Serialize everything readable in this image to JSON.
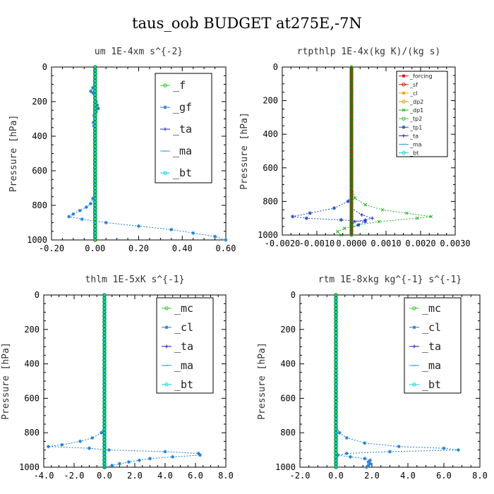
{
  "figure_title": "taus_oob  BUDGET at275E,-7N",
  "chart_data": [
    {
      "type": "line",
      "title": "um  1E-4xm s^{-2}",
      "ylabel": "Pressure [hPa]",
      "xlim": [
        -0.2,
        0.6
      ],
      "ylim": [
        1000,
        0
      ],
      "xticks": [
        "-0.20",
        "0.00",
        "0.20",
        "0.40",
        "0.60"
      ],
      "yticks": [
        "0",
        "200",
        "400",
        "600",
        "800",
        "1000"
      ],
      "legend_placement": "top-right",
      "series": [
        {
          "name": "_f",
          "color": "#2ecc2e",
          "marker": "o",
          "p": [
            0,
            100,
            200,
            300,
            400,
            500,
            600,
            700,
            800,
            900,
            1000
          ],
          "v": [
            0,
            0,
            0,
            0,
            0,
            0,
            0,
            0,
            0,
            0,
            0
          ]
        },
        {
          "name": "_gf",
          "color": "#1e7fd0",
          "marker": "*",
          "p": [
            0,
            120,
            140,
            150,
            170,
            200,
            220,
            240,
            260,
            280,
            300,
            320,
            340,
            360,
            400,
            600,
            700,
            760,
            790,
            810,
            830,
            850,
            865,
            880,
            900,
            920,
            940,
            960,
            980,
            1000
          ],
          "v": [
            0,
            -0.01,
            -0.02,
            -0.01,
            0,
            0.005,
            0.01,
            0.015,
            0.005,
            -0.005,
            0,
            -0.008,
            -0.005,
            0,
            0,
            0,
            0,
            -0.01,
            -0.02,
            -0.04,
            -0.07,
            -0.1,
            -0.12,
            -0.06,
            0.05,
            0.2,
            0.35,
            0.45,
            0.55,
            0.6
          ]
        },
        {
          "name": "_ta",
          "color": "#1a1acc",
          "marker": "+",
          "p": [],
          "v": []
        },
        {
          "name": "_ma",
          "color": "#2a9fe0",
          "marker": "-",
          "p": [],
          "v": []
        },
        {
          "name": "_bt",
          "color": "#13d6d6",
          "marker": "o",
          "p": [
            0,
            200,
            400,
            600,
            800,
            1000
          ],
          "v": [
            0,
            0,
            0,
            0,
            0,
            0
          ]
        }
      ]
    },
    {
      "type": "line",
      "title": "rtpthlp  1E-4x(kg K)/(kg s)",
      "ylabel": "Pressure [hPa]",
      "xlim": [
        -0.002,
        0.003
      ],
      "ylim": [
        1000,
        0
      ],
      "xticks": [
        "-0.0020",
        "-0.0010",
        "0.0000",
        "0.0010",
        "0.0020",
        "0.0030"
      ],
      "yticks": [
        "0",
        "200",
        "400",
        "600",
        "800",
        "1000"
      ],
      "legend_placement": "top-right",
      "series": [
        {
          "name": "_forcing",
          "color": "#d01010",
          "marker": "*",
          "p": [
            0,
            200,
            400,
            600,
            800,
            1000
          ],
          "v": [
            0,
            0,
            0,
            0,
            0,
            0
          ]
        },
        {
          "name": "_sf",
          "color": "#d01010",
          "marker": "o",
          "p": [],
          "v": []
        },
        {
          "name": "_cl",
          "color": "#e0a010",
          "marker": "*",
          "p": [],
          "v": []
        },
        {
          "name": "_dp2",
          "color": "#e0a010",
          "marker": "o",
          "p": [],
          "v": []
        },
        {
          "name": "_dp1",
          "color": "#20b020",
          "marker": "x",
          "p": [
            0,
            700,
            780,
            820,
            850,
            870,
            890,
            900,
            920,
            940,
            960,
            980,
            1000
          ],
          "v": [
            0,
            0,
            0.0001,
            0.0004,
            0.0009,
            0.0016,
            0.0023,
            0.0019,
            0.0008,
            0.0002,
            -0.0002,
            -0.0004,
            -0.0003
          ]
        },
        {
          "name": "_tp2",
          "color": "#40c040",
          "marker": "o",
          "p": [],
          "v": []
        },
        {
          "name": "_tp1",
          "color": "#2050c0",
          "marker": "*",
          "p": [
            0,
            760,
            800,
            840,
            870,
            890,
            900,
            910,
            920,
            940,
            960,
            1000
          ],
          "v": [
            0,
            0,
            -0.0001,
            -0.0005,
            -0.0012,
            -0.0017,
            -0.0013,
            -0.0003,
            0.0004,
            0.0002,
            0,
            0
          ]
        },
        {
          "name": "_ta",
          "color": "#1a1acc",
          "marker": "+",
          "p": [
            0,
            840,
            880,
            900,
            910,
            920,
            940,
            1000
          ],
          "v": [
            0,
            0,
            0.0003,
            0.0006,
            0.0004,
            0.0001,
            0,
            0
          ]
        },
        {
          "name": "_ma",
          "color": "#2a9fe0",
          "marker": "-",
          "p": [],
          "v": []
        },
        {
          "name": "_bt",
          "color": "#13d6d6",
          "marker": "o",
          "p": [],
          "v": []
        }
      ]
    },
    {
      "type": "line",
      "title": "thlm  1E-5xK s^{-1}",
      "ylabel": "Pressure [hPa]",
      "xlim": [
        -4,
        8
      ],
      "ylim": [
        1000,
        0
      ],
      "xticks": [
        "-4.0",
        "-2.0",
        "0.0",
        "2.0",
        "4.0",
        "6.0",
        "8.0"
      ],
      "yticks": [
        "0",
        "200",
        "400",
        "600",
        "800",
        "1000"
      ],
      "legend_placement": "top-right",
      "series": [
        {
          "name": "_mc",
          "color": "#2ecc2e",
          "marker": "o",
          "p": [
            0,
            200,
            400,
            600,
            800,
            1000
          ],
          "v": [
            0,
            0,
            0,
            0,
            0,
            0
          ]
        },
        {
          "name": "_cl",
          "color": "#1e7fd0",
          "marker": "*",
          "p": [
            0,
            760,
            800,
            830,
            850,
            870,
            880,
            890,
            900,
            910,
            920,
            930,
            940,
            950,
            960,
            970,
            980,
            990,
            1000
          ],
          "v": [
            0,
            0,
            -0.2,
            -0.8,
            -1.6,
            -2.8,
            -3.7,
            -1.0,
            0.3,
            4.0,
            6.2,
            6.3,
            4.5,
            3.0,
            2.3,
            1.6,
            1.0,
            0.5,
            0
          ]
        },
        {
          "name": "_ta",
          "color": "#1a1acc",
          "marker": "+",
          "p": [],
          "v": []
        },
        {
          "name": "_ma",
          "color": "#2a9fe0",
          "marker": "-",
          "p": [],
          "v": []
        },
        {
          "name": "_bt",
          "color": "#13d6d6",
          "marker": "o",
          "p": [
            0,
            200,
            400,
            600,
            800,
            1000
          ],
          "v": [
            0,
            0,
            0,
            0,
            0,
            0
          ]
        }
      ]
    },
    {
      "type": "line",
      "title": "rtm  1E-8xkg kg^{-1} s^{-1}",
      "ylabel": "Pressure [hPa]",
      "xlim": [
        -2,
        8
      ],
      "ylim": [
        1000,
        0
      ],
      "xticks": [
        "-2.0",
        "0.0",
        "2.0",
        "4.0",
        "6.0",
        "8.0"
      ],
      "yticks": [
        "0",
        "200",
        "400",
        "600",
        "800",
        "1000"
      ],
      "legend_placement": "top-right",
      "series": [
        {
          "name": "_mc",
          "color": "#2ecc2e",
          "marker": "o",
          "p": [
            0,
            200,
            400,
            600,
            800,
            1000
          ],
          "v": [
            0,
            0,
            0,
            0,
            0,
            0
          ]
        },
        {
          "name": "_cl",
          "color": "#1e7fd0",
          "marker": "*",
          "p": [
            0,
            760,
            800,
            830,
            860,
            880,
            890,
            900,
            910,
            920,
            930,
            940,
            950,
            960,
            970,
            980,
            990,
            1000
          ],
          "v": [
            0,
            0,
            0.2,
            0.6,
            1.6,
            3.5,
            6.0,
            6.8,
            3.0,
            0.6,
            0.1,
            0.8,
            1.6,
            1.9,
            1.8,
            1.9,
            1.8,
            1.7
          ]
        },
        {
          "name": "_ta",
          "color": "#1a1acc",
          "marker": "+",
          "p": [],
          "v": []
        },
        {
          "name": "_ma",
          "color": "#2a9fe0",
          "marker": "-",
          "p": [],
          "v": []
        },
        {
          "name": "_bt",
          "color": "#13d6d6",
          "marker": "o",
          "p": [
            0,
            200,
            400,
            600,
            800,
            1000
          ],
          "v": [
            0,
            0,
            0,
            0,
            0,
            0
          ]
        }
      ]
    }
  ]
}
